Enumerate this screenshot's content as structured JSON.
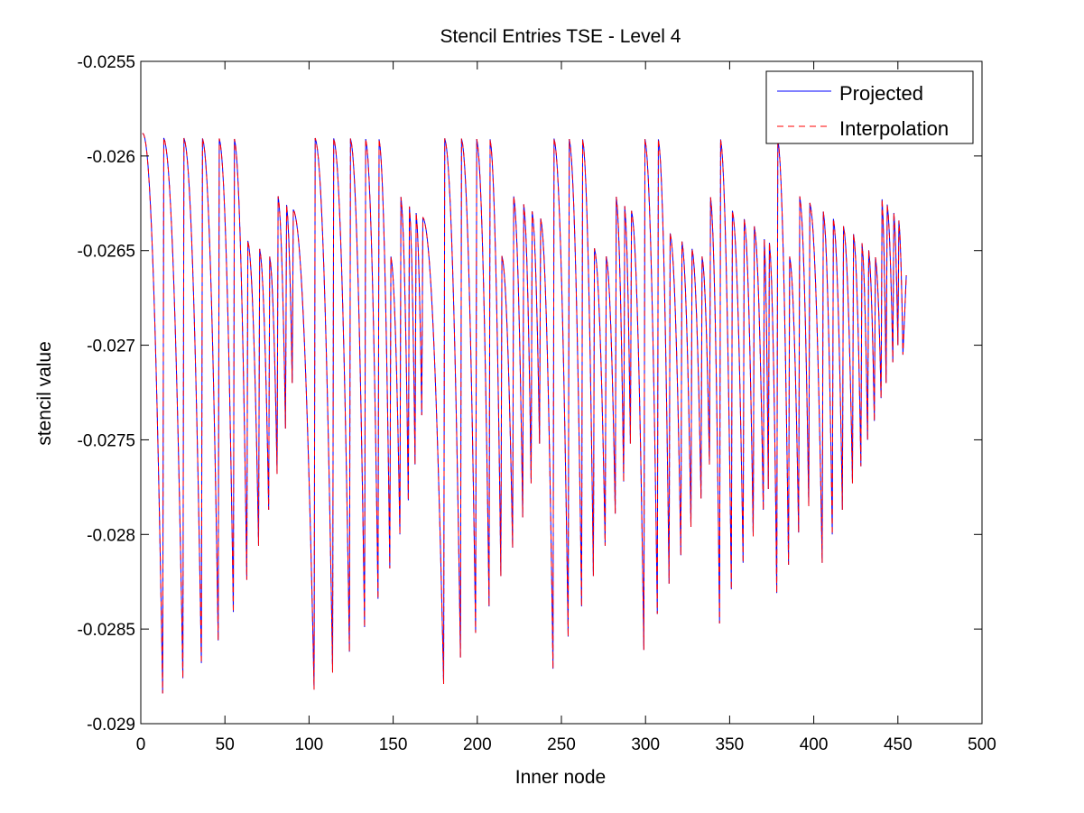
{
  "chart_data": {
    "type": "line",
    "title": "Stencil Entries TSE - Level 4",
    "xlabel": "Inner node",
    "ylabel": "stencil value",
    "xlim": [
      0,
      500
    ],
    "ylim": [
      -0.029,
      -0.0255
    ],
    "xticks": [
      0,
      50,
      100,
      150,
      200,
      250,
      300,
      350,
      400,
      450,
      500
    ],
    "yticks": [
      -0.0255,
      -0.026,
      -0.0265,
      -0.027,
      -0.0275,
      -0.028,
      -0.0285,
      -0.029
    ],
    "xtick_labels": [
      "0",
      "50",
      "100",
      "150",
      "200",
      "250",
      "300",
      "350",
      "400",
      "450",
      "500"
    ],
    "ytick_labels": [
      "-0.0255",
      "-0.026",
      "-0.0265",
      "-0.027",
      "-0.0275",
      "-0.028",
      "-0.0285",
      "-0.029"
    ],
    "grid": false,
    "legend_position": "top-right",
    "x_range_of_data": [
      1,
      455
    ],
    "series": [
      {
        "name": "Projected",
        "color": "#0000ff",
        "style": "solid",
        "description_of_pattern": "sawtooth oscillation per grid row; each cycle rises from a deep minimum back to about -0.0259"
      },
      {
        "name": "Interpolation",
        "color": "#ff0000",
        "style": "dashed"
      }
    ],
    "cycle_minima": [
      [
        13,
        -0.02884
      ],
      [
        25,
        -0.02876
      ],
      [
        36,
        -0.02868
      ],
      [
        46,
        -0.02856
      ],
      [
        55,
        -0.02841
      ],
      [
        63,
        -0.02824
      ],
      [
        70,
        -0.02806
      ],
      [
        76,
        -0.02787
      ],
      [
        81,
        -0.02768
      ],
      [
        86,
        -0.02744
      ],
      [
        90,
        -0.0272
      ],
      [
        103,
        -0.02882
      ],
      [
        114,
        -0.02873
      ],
      [
        124,
        -0.02862
      ],
      [
        133,
        -0.02849
      ],
      [
        141,
        -0.02834
      ],
      [
        148,
        -0.02818
      ],
      [
        154,
        -0.028
      ],
      [
        159,
        -0.02782
      ],
      [
        163,
        -0.02763
      ],
      [
        167,
        -0.02737
      ],
      [
        180,
        -0.02879
      ],
      [
        190,
        -0.02865
      ],
      [
        199,
        -0.02852
      ],
      [
        207,
        -0.02838
      ],
      [
        214,
        -0.02822
      ],
      [
        221,
        -0.02807
      ],
      [
        227,
        -0.02791
      ],
      [
        232,
        -0.02773
      ],
      [
        237,
        -0.02752
      ],
      [
        245,
        -0.02871
      ],
      [
        254,
        -0.02854
      ],
      [
        262,
        -0.02838
      ],
      [
        269,
        -0.02822
      ],
      [
        276,
        -0.02806
      ],
      [
        282,
        -0.02789
      ],
      [
        287,
        -0.02772
      ],
      [
        291,
        -0.02752
      ],
      [
        299,
        -0.02861
      ],
      [
        307,
        -0.02842
      ],
      [
        314,
        -0.02826
      ],
      [
        321,
        -0.02811
      ],
      [
        327,
        -0.02796
      ],
      [
        333,
        -0.02781
      ],
      [
        338,
        -0.02763
      ],
      [
        344,
        -0.02847
      ],
      [
        351,
        -0.02829
      ],
      [
        358,
        -0.02815
      ],
      [
        364,
        -0.02801
      ],
      [
        370,
        -0.02787
      ],
      [
        373,
        -0.02776
      ],
      [
        378,
        -0.02831
      ],
      [
        385,
        -0.02816
      ],
      [
        391,
        -0.02799
      ],
      [
        397,
        -0.02785
      ],
      [
        405,
        -0.02815
      ],
      [
        411,
        -0.028
      ],
      [
        417,
        -0.02787
      ],
      [
        423,
        -0.02773
      ],
      [
        428,
        -0.02764
      ],
      [
        432,
        -0.0275
      ],
      [
        436,
        -0.0274
      ],
      [
        440,
        -0.02728
      ],
      [
        443,
        -0.0272
      ],
      [
        447,
        -0.02709
      ],
      [
        450,
        -0.027
      ],
      [
        453,
        -0.02705
      ]
    ]
  }
}
